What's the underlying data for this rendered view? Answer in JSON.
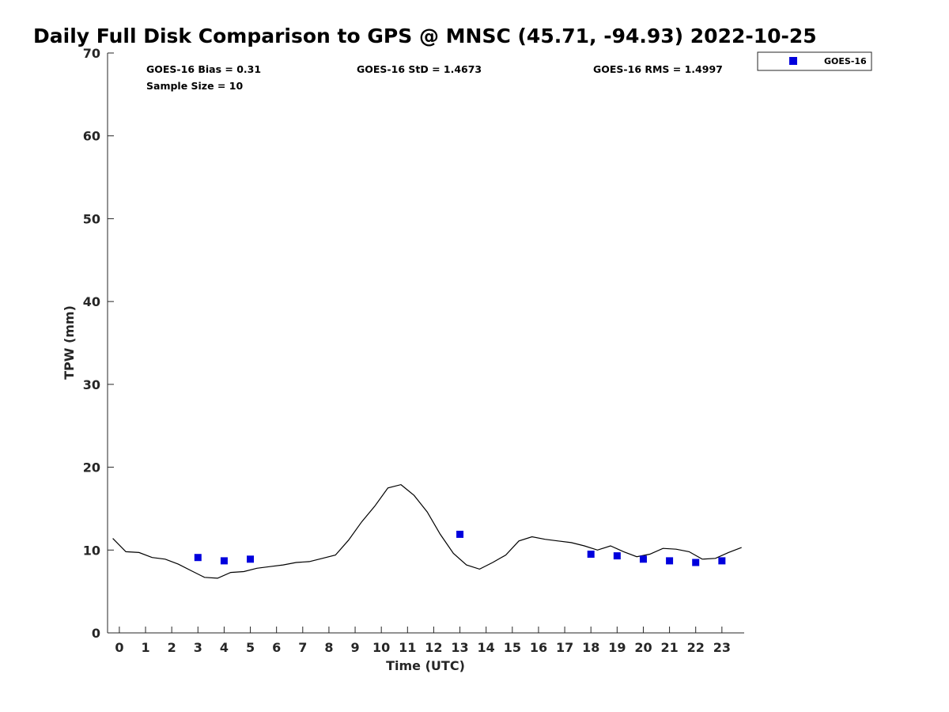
{
  "chart_data": {
    "type": "scatter",
    "title": "Daily Full Disk Comparison to GPS @ MNSC (45.71, -94.93) 2022-10-25",
    "xlabel": "Time (UTC)",
    "ylabel": "TPW (mm)",
    "xlim": [
      -0.45,
      23.85
    ],
    "ylim": [
      0,
      70
    ],
    "x_ticks": [
      0,
      1,
      2,
      3,
      4,
      5,
      6,
      7,
      8,
      9,
      10,
      11,
      12,
      13,
      14,
      15,
      16,
      17,
      18,
      19,
      20,
      21,
      22,
      23
    ],
    "y_ticks": [
      0,
      10,
      20,
      30,
      40,
      50,
      60,
      70
    ],
    "grid": false,
    "legend_position": "top-right, outside plot",
    "stats": {
      "bias": "GOES-16 Bias = 0.31",
      "sample_size": "Sample Size = 10",
      "std": "GOES-16 StD = 1.4673",
      "rms": "GOES-16 RMS = 1.4997"
    },
    "series": [
      {
        "name": "GPS",
        "kind": "line",
        "color": "#000000",
        "x": [
          -0.25,
          0.25,
          0.75,
          1.25,
          1.75,
          2.25,
          2.75,
          3.25,
          3.75,
          4.25,
          4.75,
          5.25,
          5.75,
          6.25,
          6.75,
          7.25,
          7.75,
          8.25,
          8.75,
          9.25,
          9.75,
          10.25,
          10.75,
          11.25,
          11.75,
          12.25,
          12.75,
          13.25,
          13.75,
          14.25,
          14.75,
          15.25,
          15.75,
          16.25,
          16.75,
          17.25,
          17.75,
          18.25,
          18.75,
          19.25,
          19.75,
          20.25,
          20.75,
          21.25,
          21.75,
          22.25,
          22.75,
          23.25,
          23.75
        ],
        "y": [
          11.4,
          9.8,
          9.7,
          9.1,
          8.9,
          8.3,
          7.5,
          6.7,
          6.6,
          7.3,
          7.4,
          7.8,
          8.0,
          8.2,
          8.5,
          8.6,
          9.0,
          9.4,
          11.2,
          13.4,
          15.3,
          17.5,
          17.9,
          16.6,
          14.6,
          11.9,
          9.6,
          8.2,
          7.7,
          8.5,
          9.4,
          11.1,
          11.6,
          11.3,
          11.1,
          10.9,
          10.5,
          10.0,
          10.5,
          9.8,
          9.2,
          9.5,
          10.2,
          10.1,
          9.8,
          8.9,
          9.0,
          9.7,
          10.3
        ]
      },
      {
        "name": "GOES-16",
        "kind": "scatter",
        "color": "#0000dd",
        "marker": "square",
        "x": [
          3,
          4,
          5,
          13,
          18,
          19,
          20,
          21,
          22,
          23
        ],
        "y": [
          9.1,
          8.7,
          8.9,
          11.9,
          9.5,
          9.3,
          8.9,
          8.7,
          8.5,
          8.7
        ]
      }
    ]
  },
  "legend": {
    "label": "GOES-16",
    "color": "#0000dd"
  }
}
